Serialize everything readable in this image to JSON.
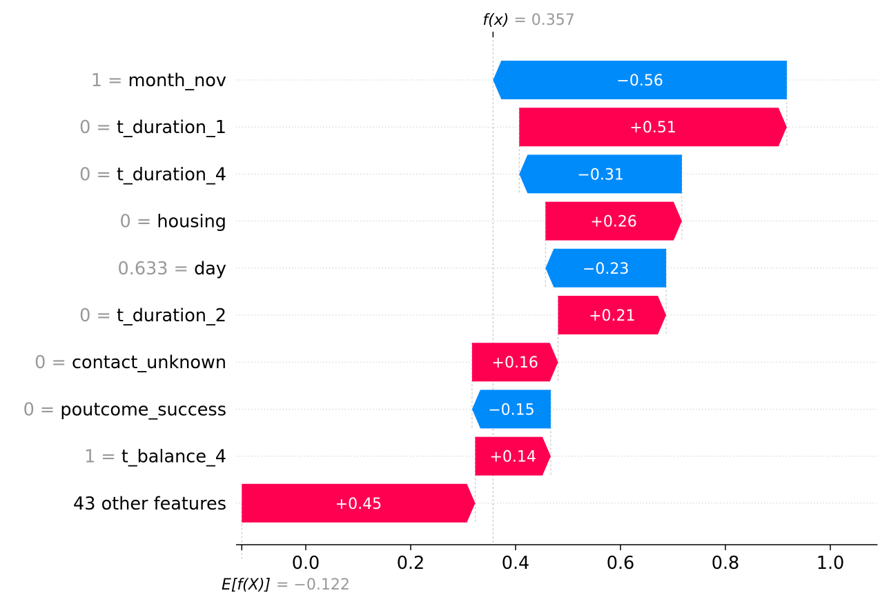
{
  "chart_data": {
    "type": "waterfall",
    "title": "",
    "xlabel": "",
    "ylabel": "",
    "xlim": [
      -0.125,
      1.09
    ],
    "xticks": [
      0.0,
      0.2,
      0.4,
      0.6,
      0.8,
      1.0
    ],
    "xtick_labels": [
      "0.0",
      "0.2",
      "0.4",
      "0.6",
      "0.8",
      "1.0"
    ],
    "fx": {
      "label": "f(x)",
      "value": 0.357,
      "value_text": "= 0.357"
    },
    "expected": {
      "label": "E[f(X)]",
      "value": -0.122,
      "value_text": "= −0.122"
    },
    "features": [
      {
        "value": "1",
        "name": "month_nov",
        "contribution": -0.56,
        "start": 0.917,
        "end": 0.357,
        "label": "−0.56"
      },
      {
        "value": "0",
        "name": "t_duration_1",
        "contribution": 0.51,
        "start": 0.407,
        "end": 0.917,
        "label": "+0.51"
      },
      {
        "value": "0",
        "name": "t_duration_4",
        "contribution": -0.31,
        "start": 0.717,
        "end": 0.407,
        "label": "−0.31"
      },
      {
        "value": "0",
        "name": "housing",
        "contribution": 0.26,
        "start": 0.457,
        "end": 0.717,
        "label": "+0.26"
      },
      {
        "value": "0.633",
        "name": "day",
        "contribution": -0.23,
        "start": 0.687,
        "end": 0.457,
        "label": "−0.23"
      },
      {
        "value": "0",
        "name": "t_duration_2",
        "contribution": 0.21,
        "start": 0.481,
        "end": 0.687,
        "label": "+0.21"
      },
      {
        "value": "0",
        "name": "contact_unknown",
        "contribution": 0.16,
        "start": 0.317,
        "end": 0.481,
        "label": "+0.16"
      },
      {
        "value": "0",
        "name": "poutcome_success",
        "contribution": -0.15,
        "start": 0.467,
        "end": 0.317,
        "label": "−0.15"
      },
      {
        "value": "1",
        "name": "t_balance_4",
        "contribution": 0.14,
        "start": 0.323,
        "end": 0.467,
        "label": "+0.14"
      },
      {
        "value": "",
        "name": "43 other features",
        "contribution": 0.45,
        "start": -0.122,
        "end": 0.323,
        "label": "+0.45"
      }
    ],
    "colors": {
      "positive": "#ff0051",
      "negative": "#008bfb",
      "feature_value_text": "#999999",
      "feature_name_text": "#000000",
      "bar_label_text": "#ffffff",
      "gridline": "#cccccc"
    }
  }
}
